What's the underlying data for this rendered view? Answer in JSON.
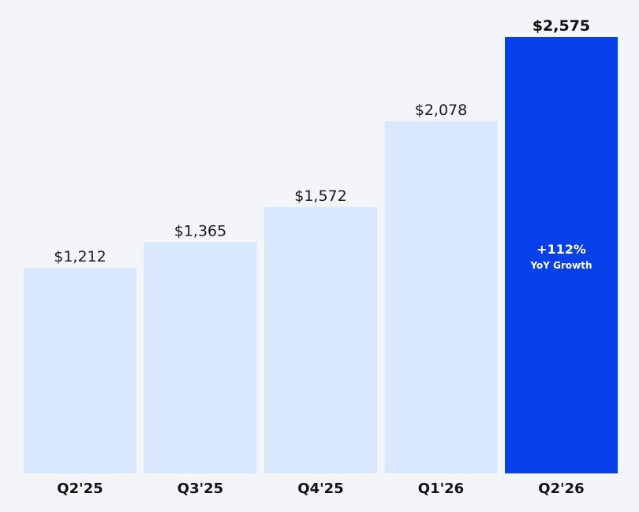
{
  "chart_data": {
    "type": "bar",
    "categories": [
      "Q2'25",
      "Q3'25",
      "Q4'25",
      "Q1'26",
      "Q2'26"
    ],
    "values": [
      1212,
      1365,
      1572,
      2078,
      2575
    ],
    "value_labels": [
      "$1,212",
      "$1,365",
      "$1,572",
      "$2,078",
      "$2,575"
    ],
    "highlight_index": 4,
    "annotation": {
      "bar_index": 4,
      "main": "+112%",
      "sub": "YoY Growth"
    },
    "ylim": [
      0,
      2575
    ],
    "grid": false,
    "legend": "none",
    "colors": {
      "bar": "#d9e8ff",
      "highlight": "#0540e8",
      "background": "#f3f5f9"
    }
  }
}
